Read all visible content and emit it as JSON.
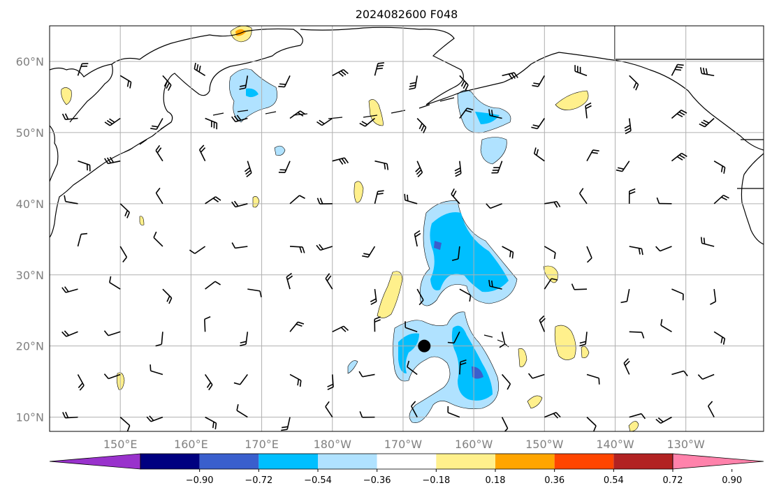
{
  "title": "2024082600 F048",
  "map": {
    "lon_range": [
      140,
      241
    ],
    "lat_range": [
      8,
      65
    ],
    "lat_ticks": [
      {
        "lat": 10,
        "label": "10°N"
      },
      {
        "lat": 20,
        "label": "20°N"
      },
      {
        "lat": 30,
        "label": "30°N"
      },
      {
        "lat": 40,
        "label": "40°N"
      },
      {
        "lat": 50,
        "label": "50°N"
      },
      {
        "lat": 60,
        "label": "60°N"
      }
    ],
    "lon_ticks": [
      {
        "lon": 150,
        "label": "150°E"
      },
      {
        "lon": 160,
        "label": "160°E"
      },
      {
        "lon": 170,
        "label": "170°E"
      },
      {
        "lon": 180,
        "label": "180°W"
      },
      {
        "lon": 190,
        "label": "170°W"
      },
      {
        "lon": 200,
        "label": "160°W"
      },
      {
        "lon": 210,
        "label": "150°W"
      },
      {
        "lon": 220,
        "label": "140°W"
      },
      {
        "lon": 230,
        "label": "130°W"
      }
    ],
    "storm_marker": {
      "lon": 193,
      "lat": 20
    }
  },
  "colorbar": {
    "colors": [
      "#9932cc",
      "#000080",
      "#3a5fcd",
      "#00bfff",
      "#b0e2ff",
      "#ffffff",
      "#fff08c",
      "#ffa500",
      "#ff4500",
      "#b22222",
      "#ff82ab"
    ],
    "ticks": [
      "−0.90",
      "−0.72",
      "−0.54",
      "−0.36",
      "−0.18",
      "0.18",
      "0.36",
      "0.54",
      "0.72",
      "0.90"
    ]
  },
  "colors": {
    "land_outline": "#000000",
    "grid": "#b0b0b0",
    "label": "#808080"
  }
}
